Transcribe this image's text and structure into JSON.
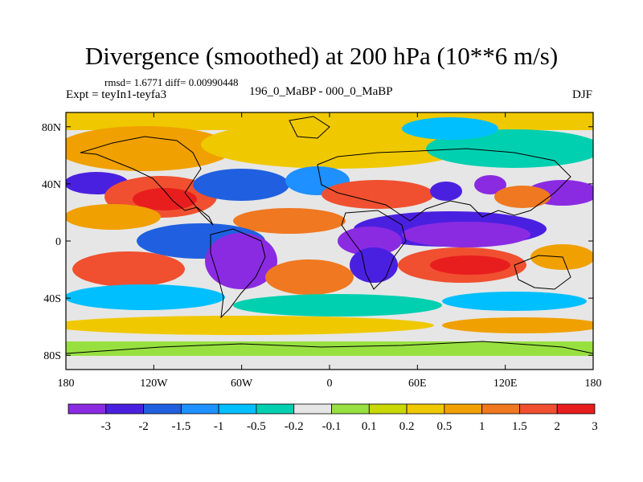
{
  "title": "Divergence (smoothed) at 200 hPa (10**6 m/s)",
  "stats_text": "rmsd= 1.6771 diff= 0.00990448",
  "left_subtitle": "Expt = teyIn1-teyfa3",
  "center_subtitle": "196_0_MaBP - 000_0_MaBP",
  "right_subtitle": "DJF",
  "lat_ticks": [
    "80N",
    "40N",
    "0",
    "40S",
    "80S"
  ],
  "lat_values": [
    80,
    40,
    0,
    -40,
    -80
  ],
  "lon_ticks": [
    "180",
    "120W",
    "60W",
    "0",
    "60E",
    "120E",
    "180"
  ],
  "lon_values": [
    -180,
    -120,
    -60,
    0,
    60,
    120,
    180
  ],
  "colorbar": {
    "colors": [
      "#8a2be2",
      "#4a20e0",
      "#2060e0",
      "#1e90ff",
      "#00bfff",
      "#00d0b0",
      "#e6e6e6",
      "#98e040",
      "#c8d800",
      "#f0c800",
      "#f0a000",
      "#f07820",
      "#f05030",
      "#e81e1e"
    ],
    "labels": [
      "-3",
      "-2",
      "-1.5",
      "-1",
      "-0.5",
      "-0.2",
      "-0.1",
      "0.1",
      "0.2",
      "0.5",
      "1",
      "1.5",
      "2",
      "3"
    ]
  }
}
